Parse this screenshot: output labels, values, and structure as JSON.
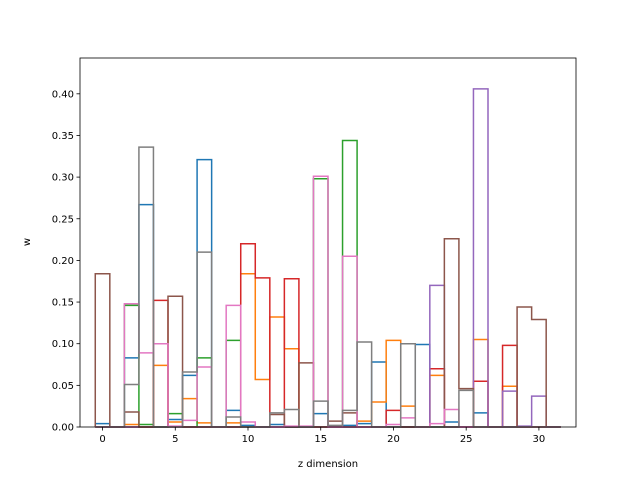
{
  "chart_data": {
    "type": "step",
    "xlabel": "z dimension",
    "ylabel": "w",
    "xlim": [
      -1.55,
      32.55
    ],
    "ylim": [
      0,
      0.443
    ],
    "xticks": [
      0,
      5,
      10,
      15,
      20,
      25,
      30
    ],
    "xtick_labels": [
      "0",
      "5",
      "10",
      "15",
      "20",
      "25",
      "30"
    ],
    "yticks": [
      0,
      0.05,
      0.1,
      0.15,
      0.2,
      0.25,
      0.3,
      0.35,
      0.4
    ],
    "ytick_labels": [
      "0.00",
      "0.05",
      "0.10",
      "0.15",
      "0.20",
      "0.25",
      "0.30",
      "0.35",
      "0.40"
    ],
    "grid": false,
    "series": [
      {
        "color": "#1f77b4",
        "values": [
          0.004,
          0,
          0.083,
          0.267,
          0,
          0.009,
          0.062,
          0.321,
          0,
          0.02,
          0.002,
          0,
          0.003,
          0,
          0,
          0.016,
          0,
          0.002,
          0.004,
          0.078,
          0,
          0,
          0.099,
          0,
          0.006,
          0,
          0.017,
          0,
          0,
          0,
          0,
          0
        ]
      },
      {
        "color": "#ff7f0e",
        "values": [
          0,
          0,
          0.003,
          0,
          0.074,
          0.006,
          0.034,
          0.005,
          0,
          0.005,
          0.184,
          0.057,
          0.132,
          0.094,
          0,
          0,
          0,
          0,
          0.007,
          0.03,
          0.104,
          0.025,
          0,
          0.062,
          0,
          0,
          0.105,
          0,
          0.049,
          0,
          0,
          0
        ]
      },
      {
        "color": "#2ca02c",
        "values": [
          0,
          0,
          0.146,
          0.003,
          0,
          0.016,
          0,
          0.083,
          0,
          0.104,
          0,
          0,
          0,
          0,
          0,
          0.298,
          0,
          0.344,
          0,
          0,
          0,
          0,
          0,
          0,
          0,
          0,
          0,
          0,
          0,
          0,
          0,
          0
        ]
      },
      {
        "color": "#d62728",
        "values": [
          0,
          0,
          0,
          0,
          0.152,
          0,
          0,
          0,
          0,
          0,
          0.22,
          0.179,
          0,
          0.178,
          0,
          0,
          0,
          0,
          0,
          0,
          0.02,
          0,
          0,
          0.07,
          0,
          0,
          0.055,
          0,
          0.098,
          0,
          0,
          0
        ]
      },
      {
        "color": "#9467bd",
        "values": [
          0,
          0,
          0,
          0,
          0,
          0,
          0,
          0,
          0,
          0,
          0,
          0,
          0,
          0,
          0,
          0,
          0,
          0,
          0,
          0,
          0,
          0,
          0,
          0.17,
          0,
          0,
          0.406,
          0,
          0.043,
          0.001,
          0.037,
          0
        ]
      },
      {
        "color": "#8c564b",
        "values": [
          0.184,
          0,
          0.018,
          0,
          0,
          0.157,
          0,
          0,
          0,
          0,
          0,
          0,
          0.015,
          0,
          0.077,
          0,
          0.007,
          0.017,
          0,
          0,
          0,
          0,
          0,
          0,
          0.226,
          0.046,
          0,
          0,
          0,
          0.144,
          0.129,
          0
        ]
      },
      {
        "color": "#e377c2",
        "values": [
          0,
          0,
          0.148,
          0.089,
          0.1,
          0.001,
          0.008,
          0.072,
          0,
          0.146,
          0.006,
          0,
          0,
          0.001,
          0.001,
          0.301,
          0,
          0.205,
          0,
          0,
          0.003,
          0.011,
          0,
          0.004,
          0.021,
          0,
          0,
          0,
          0,
          0,
          0,
          0
        ]
      },
      {
        "color": "#7f7f7f",
        "values": [
          0,
          0,
          0.051,
          0.336,
          0,
          0,
          0.066,
          0.21,
          0,
          0.012,
          0,
          0,
          0.017,
          0.021,
          0,
          0.031,
          0.002,
          0.02,
          0.102,
          0,
          0,
          0.1,
          0,
          0,
          0,
          0.044,
          0,
          0,
          0,
          0,
          0,
          0
        ]
      }
    ]
  }
}
